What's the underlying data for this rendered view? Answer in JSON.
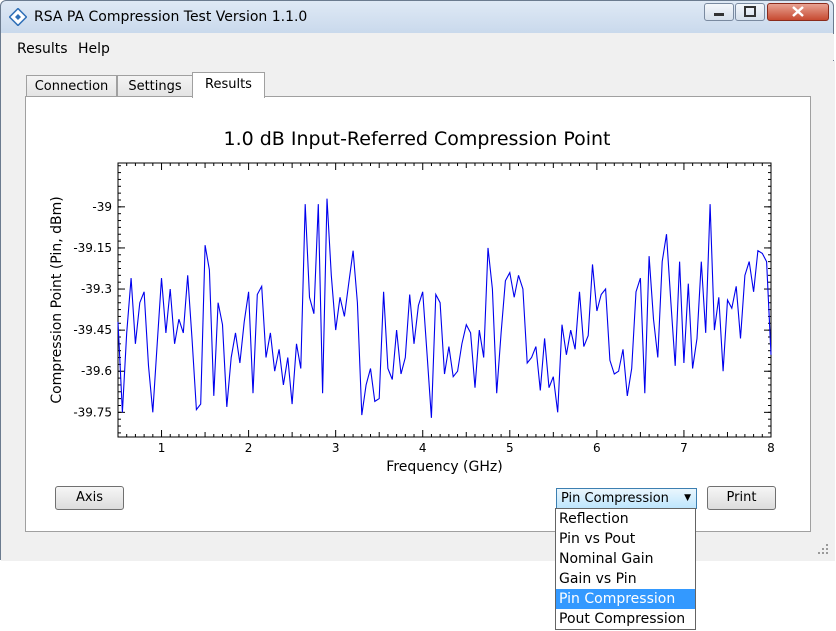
{
  "window": {
    "title": "RSA PA Compression Test Version 1.1.0"
  },
  "menu": {
    "items": [
      "Results",
      "Help"
    ]
  },
  "tabs": [
    "Connection",
    "Settings",
    "Results"
  ],
  "active_tab": "Results",
  "buttons": {
    "axis": "Axis",
    "print": "Print"
  },
  "combo": {
    "selected": "Pin Compression",
    "options": [
      "Reflection",
      "Pin vs Pout",
      "Nominal Gain",
      "Gain vs Pin",
      "Pin Compression",
      "Pout Compression"
    ]
  },
  "colors": {
    "series": "#0000ee",
    "highlight": "#3399ff"
  },
  "chart_data": {
    "type": "line",
    "title": "1.0  dB Input-Referred Compression Point",
    "xlabel": "Frequency (GHz)",
    "ylabel": "Compression Point (Pin, dBm)",
    "xlim": [
      0.5,
      8
    ],
    "ylim": [
      -39.84,
      -38.84
    ],
    "xticks": [
      "1",
      "2",
      "3",
      "4",
      "5",
      "6",
      "7",
      "8"
    ],
    "yticks": [
      "-39",
      "-39.15",
      "-39.3",
      "-39.45",
      "-39.6",
      "-39.75"
    ],
    "grid": false,
    "series": [
      {
        "x": [
          0.5,
          0.55,
          0.6,
          0.65,
          0.7,
          0.75,
          0.8,
          0.85,
          0.9,
          0.95,
          1.0,
          1.05,
          1.1,
          1.15,
          1.2,
          1.25,
          1.3,
          1.35,
          1.4,
          1.45,
          1.5,
          1.55,
          1.6,
          1.65,
          1.7,
          1.75,
          1.8,
          1.85,
          1.9,
          1.95,
          2.0,
          2.05,
          2.1,
          2.15,
          2.2,
          2.25,
          2.3,
          2.35,
          2.4,
          2.45,
          2.5,
          2.55,
          2.6,
          2.65,
          2.7,
          2.75,
          2.8,
          2.85,
          2.9,
          2.95,
          3.0,
          3.05,
          3.1,
          3.15,
          3.2,
          3.25,
          3.3,
          3.35,
          3.4,
          3.45,
          3.5,
          3.55,
          3.6,
          3.65,
          3.7,
          3.75,
          3.8,
          3.85,
          3.9,
          3.95,
          4.0,
          4.05,
          4.1,
          4.15,
          4.2,
          4.25,
          4.3,
          4.35,
          4.4,
          4.45,
          4.5,
          4.55,
          4.6,
          4.65,
          4.7,
          4.75,
          4.8,
          4.85,
          4.9,
          4.95,
          5.0,
          5.05,
          5.1,
          5.15,
          5.2,
          5.25,
          5.3,
          5.35,
          5.4,
          5.45,
          5.5,
          5.55,
          5.6,
          5.65,
          5.7,
          5.75,
          5.8,
          5.85,
          5.9,
          5.95,
          6.0,
          6.05,
          6.1,
          6.15,
          6.2,
          6.25,
          6.3,
          6.35,
          6.4,
          6.45,
          6.5,
          6.55,
          6.6,
          6.65,
          6.7,
          6.75,
          6.8,
          6.85,
          6.9,
          6.95,
          7.0,
          7.05,
          7.1,
          7.15,
          7.2,
          7.25,
          7.3,
          7.35,
          7.4,
          7.45,
          7.5,
          7.55,
          7.6,
          7.65,
          7.7,
          7.75,
          7.8,
          7.85,
          7.9,
          7.95,
          8.0
        ],
        "y": [
          -39.42,
          -39.75,
          -39.46,
          -39.26,
          -39.5,
          -39.35,
          -39.31,
          -39.58,
          -39.75,
          -39.5,
          -39.26,
          -39.46,
          -39.3,
          -39.5,
          -39.41,
          -39.46,
          -39.25,
          -39.48,
          -39.74,
          -39.72,
          -39.14,
          -39.23,
          -39.69,
          -39.35,
          -39.43,
          -39.73,
          -39.55,
          -39.46,
          -39.57,
          -39.42,
          -39.31,
          -39.68,
          -39.32,
          -39.29,
          -39.55,
          -39.46,
          -39.6,
          -39.52,
          -39.65,
          -39.55,
          -39.72,
          -39.5,
          -39.59,
          -38.99,
          -39.33,
          -39.39,
          -38.99,
          -39.68,
          -38.97,
          -39.25,
          -39.45,
          -39.33,
          -39.4,
          -39.28,
          -39.16,
          -39.35,
          -39.76,
          -39.65,
          -39.59,
          -39.71,
          -39.7,
          -39.31,
          -39.59,
          -39.63,
          -39.45,
          -39.61,
          -39.55,
          -39.32,
          -39.5,
          -39.36,
          -39.31,
          -39.54,
          -39.77,
          -39.32,
          -39.35,
          -39.61,
          -39.51,
          -39.62,
          -39.6,
          -39.5,
          -39.43,
          -39.46,
          -39.66,
          -39.45,
          -39.55,
          -39.15,
          -39.3,
          -39.68,
          -39.46,
          -39.27,
          -39.24,
          -39.33,
          -39.25,
          -39.3,
          -39.57,
          -39.55,
          -39.51,
          -39.67,
          -39.48,
          -39.66,
          -39.62,
          -39.75,
          -39.43,
          -39.54,
          -39.45,
          -39.52,
          -39.31,
          -39.51,
          -39.47,
          -39.21,
          -39.38,
          -39.32,
          -39.3,
          -39.56,
          -39.61,
          -39.6,
          -39.52,
          -39.69,
          -39.59,
          -39.31,
          -39.26,
          -39.68,
          -39.18,
          -39.41,
          -39.55,
          -39.2,
          -39.1,
          -39.35,
          -39.58,
          -39.2,
          -39.57,
          -39.28,
          -39.59,
          -39.48,
          -39.2,
          -39.46,
          -38.99,
          -39.45,
          -39.33,
          -39.6,
          -39.34,
          -39.37,
          -39.29,
          -39.48,
          -39.25,
          -39.2,
          -39.31,
          -39.16,
          -39.17,
          -39.2,
          -39.54
        ]
      }
    ]
  }
}
